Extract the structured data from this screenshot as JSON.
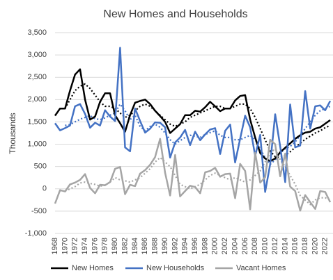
{
  "chart_data": {
    "type": "line",
    "title": "New Homes and Households",
    "y_label": "Thousands",
    "x": [
      1968,
      1969,
      1970,
      1971,
      1972,
      1973,
      1974,
      1975,
      1976,
      1977,
      1978,
      1979,
      1980,
      1981,
      1982,
      1983,
      1984,
      1985,
      1986,
      1987,
      1988,
      1989,
      1990,
      1991,
      1992,
      1993,
      1994,
      1995,
      1996,
      1997,
      1998,
      1999,
      2000,
      2001,
      2002,
      2003,
      2004,
      2005,
      2006,
      2007,
      2008,
      2009,
      2010,
      2011,
      2012,
      2013,
      2014,
      2015,
      2016,
      2017,
      2018,
      2019,
      2020,
      2021,
      2022,
      2023
    ],
    "xlim": [
      1968,
      2023
    ],
    "xticks": [
      1968,
      1970,
      1972,
      1974,
      1976,
      1978,
      1980,
      1982,
      1984,
      1986,
      1988,
      1990,
      1992,
      1994,
      1996,
      1998,
      2000,
      2002,
      2004,
      2006,
      2008,
      2010,
      2012,
      2014,
      2016,
      2018,
      2020,
      2022
    ],
    "ylim": [
      -1000,
      3500
    ],
    "yticks": [
      {
        "value": -1000,
        "label": "-1,000"
      },
      -500,
      0,
      500,
      {
        "value": 1000,
        "label": "1,000"
      },
      {
        "value": 1500,
        "label": "1,500"
      },
      {
        "value": 2000,
        "label": "2,000"
      },
      {
        "value": 2500,
        "label": "2,500"
      },
      {
        "value": 3000,
        "label": "3,000"
      },
      {
        "value": 3500,
        "label": "3,500"
      }
    ],
    "grid": true,
    "legend": "bottom",
    "series": [
      {
        "name": "New Homes",
        "color": "#000000",
        "values": [
          1640,
          1800,
          1800,
          2200,
          2560,
          2680,
          2000,
          1550,
          1620,
          1950,
          2140,
          2140,
          1650,
          1470,
          1280,
          1650,
          1930,
          1970,
          2000,
          1900,
          1750,
          1630,
          1500,
          1250,
          1350,
          1450,
          1650,
          1650,
          1750,
          1730,
          1830,
          1950,
          1850,
          1740,
          1800,
          1800,
          1980,
          2080,
          2100,
          1550,
          1150,
          800,
          680,
          620,
          680,
          820,
          920,
          1020,
          1120,
          1200,
          1260,
          1280,
          1350,
          1380,
          1460,
          1540
        ],
        "trend": [
          null,
          null,
          1800,
          2000,
          2200,
          2300,
          2350,
          2250,
          2100,
          1950,
          1850,
          1850,
          1800,
          1700,
          1600,
          1650,
          1750,
          1850,
          1900,
          1850,
          1750,
          1650,
          1550,
          1450,
          1400,
          1450,
          1500,
          1600,
          1650,
          1700,
          1750,
          1800,
          1850,
          1850,
          1800,
          1800,
          1850,
          1900,
          1900,
          1800,
          1600,
          1350,
          1100,
          850,
          720,
          700,
          750,
          830,
          930,
          1020,
          1110,
          1180,
          1250,
          1300,
          1370,
          1420
        ]
      },
      {
        "name": "New Households",
        "color": "#4472c4",
        "values": [
          1470,
          1310,
          1360,
          1420,
          1850,
          1900,
          1680,
          1370,
          1480,
          1420,
          1760,
          1620,
          1520,
          3160,
          930,
          840,
          1800,
          1520,
          1260,
          1350,
          1490,
          1480,
          1380,
          700,
          1040,
          1150,
          1320,
          980,
          1280,
          1090,
          1220,
          1330,
          1360,
          780,
          1300,
          1440,
          590,
          1120,
          1640,
          1380,
          740,
          1210,
          -70,
          550,
          1670,
          950,
          150,
          1890,
          930,
          970,
          2190,
          1350,
          1850,
          1870,
          1760,
          1970
        ],
        "trend": [
          null,
          null,
          1420,
          1440,
          1500,
          1560,
          1600,
          1640,
          1570,
          1550,
          1590,
          1650,
          1700,
          1900,
          1750,
          1550,
          1650,
          1400,
          1300,
          1400,
          1450,
          1380,
          1250,
          1100,
          1000,
          1080,
          1150,
          1200,
          1180,
          1150,
          1220,
          1260,
          1300,
          1200,
          1150,
          1150,
          1100,
          1100,
          1150,
          1200,
          1100,
          900,
          700,
          550,
          650,
          800,
          900,
          950,
          1050,
          1200,
          1350,
          1500,
          1650,
          1750,
          1800,
          1850
        ]
      },
      {
        "name": "Vacant Homes",
        "color": "#a5a5a5",
        "values": [
          -330,
          -30,
          -60,
          100,
          140,
          200,
          330,
          20,
          -100,
          90,
          80,
          150,
          450,
          490,
          -120,
          90,
          60,
          340,
          420,
          540,
          710,
          1120,
          360,
          -150,
          760,
          -170,
          -50,
          70,
          40,
          -100,
          370,
          400,
          470,
          270,
          330,
          340,
          -210,
          560,
          400,
          -460,
          810,
          140,
          260,
          1100,
          1000,
          280,
          790,
          50,
          -50,
          -490,
          -140,
          -300,
          -450,
          -50,
          -70,
          -300
        ],
        "trend": [
          null,
          null,
          -50,
          0,
          50,
          130,
          150,
          120,
          100,
          60,
          80,
          150,
          250,
          200,
          180,
          150,
          200,
          250,
          350,
          450,
          600,
          700,
          600,
          500,
          300,
          100,
          50,
          0,
          50,
          100,
          200,
          300,
          350,
          300,
          250,
          200,
          250,
          200,
          150,
          200,
          300,
          400,
          600,
          800,
          900,
          650,
          500,
          300,
          100,
          -150,
          -250,
          -350,
          -250,
          -200,
          -200,
          -250
        ]
      }
    ]
  }
}
